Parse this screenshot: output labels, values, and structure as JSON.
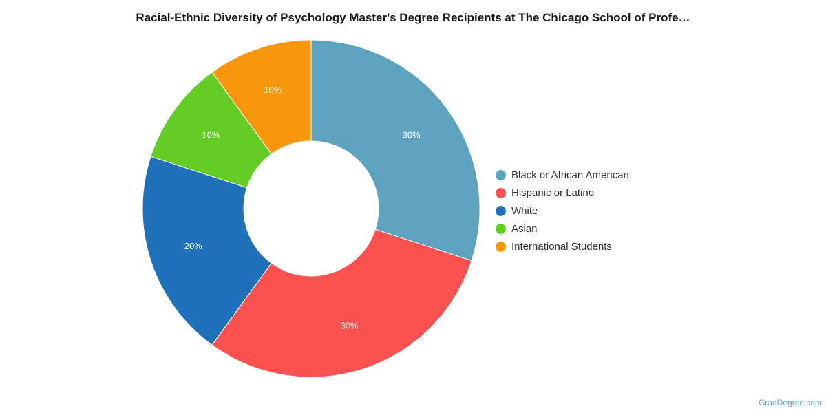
{
  "chart_data": {
    "type": "pie",
    "donut": true,
    "title": "Racial-Ethnic Diversity of Psychology Master's Degree Recipients at The Chicago School of Profe…",
    "categories": [
      "Black or African American",
      "Hispanic or Latino",
      "White",
      "Asian",
      "International Students"
    ],
    "values": [
      30,
      30,
      20,
      10,
      10
    ],
    "labels": [
      "30%",
      "30%",
      "20%",
      "10%",
      "10%"
    ],
    "colors": [
      "#5da2be",
      "#fd5050",
      "#1f72b9",
      "#63cd26",
      "#f8970c"
    ],
    "legend_position": "right"
  },
  "credit": "GradDegree.com"
}
